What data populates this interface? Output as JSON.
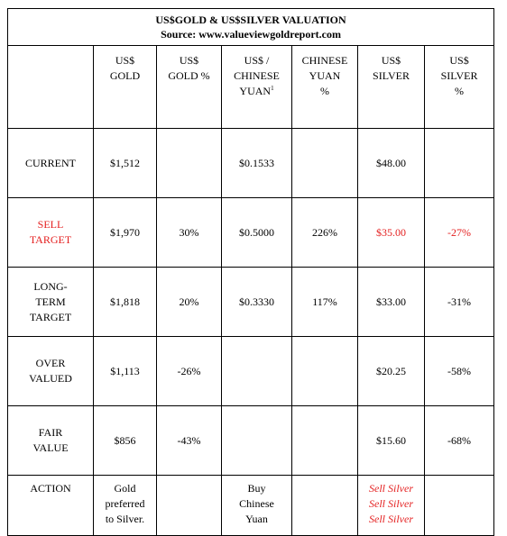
{
  "title": {
    "line1": "US$GOLD & US$SILVER VALUATION",
    "line2": "Source: www.valueviewgoldreport.com"
  },
  "headers": {
    "gold": "US$\nGOLD",
    "gold_pct": "US$\nGOLD %",
    "yuan": "US$ /\nCHINESE\nYUAN",
    "yuan_sup": "1",
    "yuan_pct": "CHINESE\nYUAN\n%",
    "silver": "US$\nSILVER",
    "silver_pct": "US$\nSILVER\n%"
  },
  "rows": [
    {
      "label": "CURRENT",
      "gold": "$1,512",
      "gold_pct": "",
      "yuan": "$0.1533",
      "yuan_pct": "",
      "silver": "$48.00",
      "silver_pct": ""
    },
    {
      "label": "SELL\nTARGET",
      "gold": "$1,970",
      "gold_pct": "30%",
      "yuan": "$0.5000",
      "yuan_pct": "226%",
      "silver": "$35.00",
      "silver_pct": "-27%"
    },
    {
      "label": "LONG-\nTERM\nTARGET",
      "gold": "$1,818",
      "gold_pct": "20%",
      "yuan": "$0.3330",
      "yuan_pct": "117%",
      "silver": "$33.00",
      "silver_pct": "-31%"
    },
    {
      "label": "OVER\nVALUED",
      "gold": "$1,113",
      "gold_pct": "-26%",
      "yuan": "",
      "yuan_pct": "",
      "silver": "$20.25",
      "silver_pct": "-58%"
    },
    {
      "label": "FAIR\nVALUE",
      "gold": "$856",
      "gold_pct": "-43%",
      "yuan": "",
      "yuan_pct": "",
      "silver": "$15.60",
      "silver_pct": "-68%"
    }
  ],
  "action": {
    "label": "ACTION",
    "gold": "Gold\npreferred\nto Silver.",
    "yuan": "Buy\nChinese\nYuan",
    "silver": "Sell Silver\nSell Silver\nSell Silver"
  },
  "colors": {
    "highlight_red": "#e41f1f",
    "border": "#000000",
    "background": "#ffffff"
  }
}
